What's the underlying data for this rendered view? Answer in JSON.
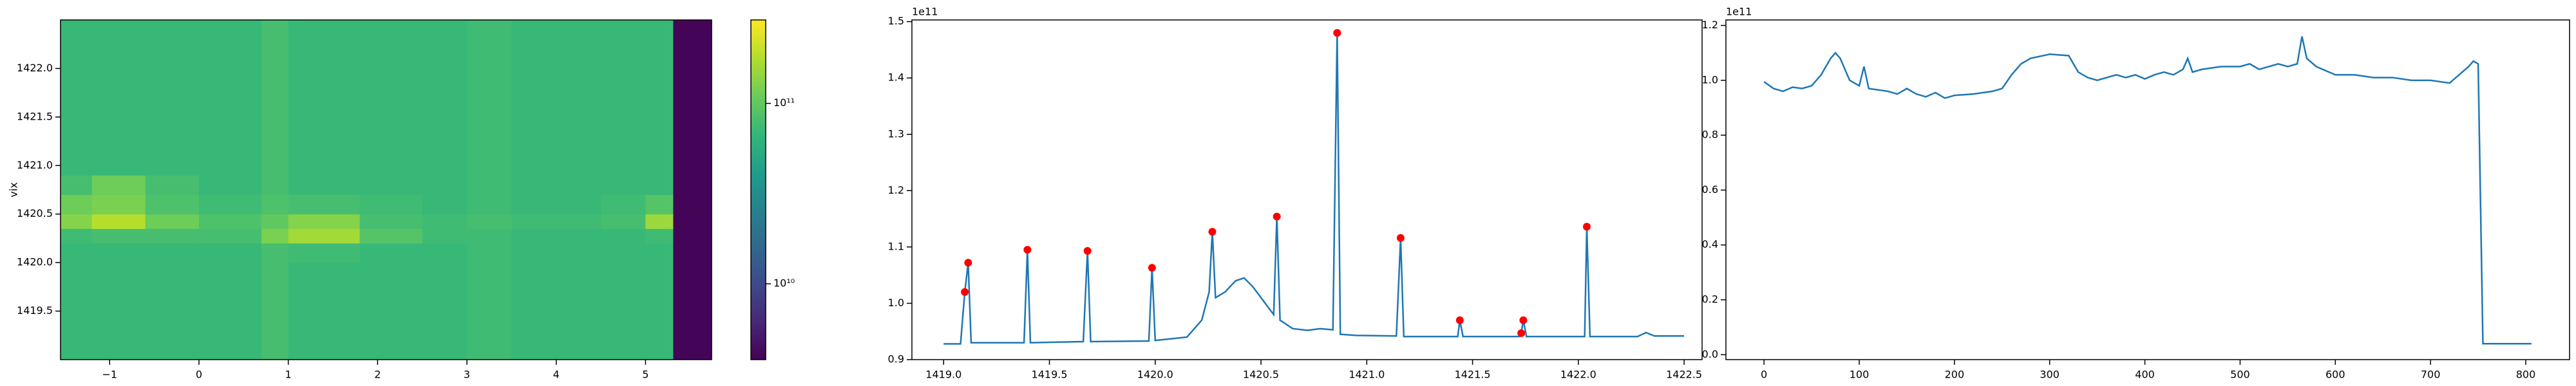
{
  "chart_data": [
    {
      "type": "heatmap",
      "y_label": "vix",
      "colorscale": "viridis",
      "color_log": true,
      "clim": [
        3800000000.0,
        290000000000.0
      ],
      "xlim": [
        -1.55,
        5.74
      ],
      "ylim": [
        1419.0,
        1422.5
      ],
      "xticks": [
        {
          "value": -1,
          "label": "−1"
        },
        0,
        1,
        2,
        3,
        4,
        5
      ],
      "yticks": [
        1419.5,
        {
          "value": 1420.0,
          "label": "1420.0"
        },
        1420.5,
        {
          "value": 1421.0,
          "label": "1421.0"
        },
        1421.5,
        {
          "value": 1422.0,
          "label": "1422.0"
        }
      ],
      "cticks": [
        {
          "value": 10000000000.0,
          "label": "10¹⁰"
        },
        {
          "value": 100000000000.0,
          "label": "10¹¹"
        }
      ],
      "x_edges": [
        -1.55,
        -1.2,
        -0.6,
        0,
        0.7,
        1.0,
        1.8,
        2.5,
        3.0,
        3.5,
        4.5,
        5.0,
        5.31,
        5.74
      ],
      "y_edges": [
        1419.0,
        1419.5,
        1420.0,
        1420.2,
        1420.35,
        1420.5,
        1420.7,
        1420.9,
        1421.5,
        1422.0,
        1422.5
      ],
      "z": [
        [
          70000000000.0,
          70000000000.0,
          70000000000.0,
          70000000000.0,
          80000000000.0,
          70000000000.0,
          70000000000.0,
          70000000000.0,
          75000000000.0,
          70000000000.0,
          70000000000.0,
          70000000000.0,
          4000000000.0
        ],
        [
          70000000000.0,
          70000000000.0,
          70000000000.0,
          70000000000.0,
          80000000000.0,
          70000000000.0,
          70000000000.0,
          70000000000.0,
          75000000000.0,
          70000000000.0,
          70000000000.0,
          70000000000.0,
          4000000000.0
        ],
        [
          70000000000.0,
          70000000000.0,
          70000000000.0,
          70000000000.0,
          80000000000.0,
          75000000000.0,
          70000000000.0,
          70000000000.0,
          75000000000.0,
          70000000000.0,
          70000000000.0,
          70000000000.0,
          4000000000.0
        ],
        [
          75000000000.0,
          80000000000.0,
          80000000000.0,
          80000000000.0,
          120000000000.0,
          160000000000.0,
          90000000000.0,
          75000000000.0,
          75000000000.0,
          70000000000.0,
          70000000000.0,
          75000000000.0,
          4000000000.0
        ],
        [
          130000000000.0,
          180000000000.0,
          110000000000.0,
          85000000000.0,
          100000000000.0,
          130000000000.0,
          80000000000.0,
          75000000000.0,
          80000000000.0,
          75000000000.0,
          80000000000.0,
          150000000000.0,
          4000000000.0
        ],
        [
          110000000000.0,
          120000000000.0,
          85000000000.0,
          75000000000.0,
          85000000000.0,
          80000000000.0,
          75000000000.0,
          70000000000.0,
          75000000000.0,
          70000000000.0,
          75000000000.0,
          90000000000.0,
          4000000000.0
        ],
        [
          80000000000.0,
          110000000000.0,
          80000000000.0,
          70000000000.0,
          80000000000.0,
          70000000000.0,
          70000000000.0,
          70000000000.0,
          75000000000.0,
          70000000000.0,
          70000000000.0,
          70000000000.0,
          4000000000.0
        ],
        [
          70000000000.0,
          70000000000.0,
          70000000000.0,
          70000000000.0,
          80000000000.0,
          70000000000.0,
          70000000000.0,
          70000000000.0,
          75000000000.0,
          70000000000.0,
          70000000000.0,
          70000000000.0,
          4000000000.0
        ],
        [
          70000000000.0,
          70000000000.0,
          70000000000.0,
          70000000000.0,
          80000000000.0,
          70000000000.0,
          70000000000.0,
          70000000000.0,
          75000000000.0,
          70000000000.0,
          70000000000.0,
          70000000000.0,
          4000000000.0
        ],
        [
          70000000000.0,
          70000000000.0,
          70000000000.0,
          70000000000.0,
          80000000000.0,
          70000000000.0,
          70000000000.0,
          70000000000.0,
          75000000000.0,
          70000000000.0,
          70000000000.0,
          70000000000.0,
          4000000000.0
        ]
      ]
    },
    {
      "type": "line",
      "offset_label": "1e11",
      "color": "#1f77b4",
      "xlim": [
        1418.85,
        1422.585
      ],
      "ylim": [
        0.9,
        1.503
      ],
      "xticks": [
        {
          "value": 1419.0,
          "label": "1419.0"
        },
        1419.5,
        {
          "value": 1420.0,
          "label": "1420.0"
        },
        1420.5,
        {
          "value": 1421.0,
          "label": "1421.0"
        },
        1421.5,
        {
          "value": 1422.0,
          "label": "1422.0"
        },
        1422.5
      ],
      "yticks": [
        0.9,
        {
          "value": 1.0,
          "label": "1.0"
        },
        1.1,
        1.2,
        1.3,
        1.4,
        1.5
      ],
      "x": [
        1419.0,
        1419.08,
        1419.1,
        1419.116,
        1419.13,
        1419.38,
        1419.396,
        1419.41,
        1419.66,
        1419.68,
        1419.695,
        1419.97,
        1419.985,
        1420.0,
        1420.15,
        1420.22,
        1420.255,
        1420.27,
        1420.285,
        1420.33,
        1420.38,
        1420.42,
        1420.46,
        1420.5,
        1420.54,
        1420.56,
        1420.575,
        1420.59,
        1420.65,
        1420.72,
        1420.78,
        1420.84,
        1420.86,
        1420.875,
        1420.95,
        1421.14,
        1421.16,
        1421.175,
        1421.43,
        1421.44,
        1421.455,
        1421.72,
        1421.73,
        1421.74,
        1421.755,
        1422.03,
        1422.04,
        1422.055,
        1422.28,
        1422.32,
        1422.36,
        1422.5
      ],
      "values": [
        0.928,
        0.928,
        1.02,
        1.072,
        0.93,
        0.93,
        1.095,
        0.93,
        0.932,
        1.093,
        0.932,
        0.933,
        1.063,
        0.934,
        0.94,
        0.97,
        1.02,
        1.127,
        1.01,
        1.02,
        1.04,
        1.045,
        1.03,
        1.01,
        0.99,
        0.98,
        1.154,
        0.97,
        0.955,
        0.952,
        0.955,
        0.953,
        1.48,
        0.945,
        0.943,
        0.942,
        1.116,
        0.941,
        0.941,
        0.97,
        0.941,
        0.941,
        0.947,
        0.97,
        0.941,
        0.941,
        1.136,
        0.941,
        0.941,
        0.948,
        0.942,
        0.942
      ],
      "markers": {
        "color": "#ff0000",
        "x": [
          1419.1,
          1419.116,
          1419.396,
          1419.68,
          1419.985,
          1420.27,
          1420.575,
          1420.86,
          1421.16,
          1421.44,
          1421.73,
          1421.74,
          1422.04
        ],
        "values": [
          1.02,
          1.072,
          1.095,
          1.093,
          1.063,
          1.127,
          1.154,
          1.48,
          1.116,
          0.97,
          0.947,
          0.97,
          1.136
        ]
      }
    },
    {
      "type": "line",
      "offset_label": "1e11",
      "color": "#1f77b4",
      "xlim": [
        -40,
        846
      ],
      "ylim": [
        -0.018,
        1.22
      ],
      "xticks": [
        0,
        100,
        200,
        300,
        400,
        500,
        600,
        700,
        800
      ],
      "yticks": [
        {
          "value": 0.0,
          "label": "0.0"
        },
        0.2,
        0.4,
        0.6,
        0.8,
        {
          "value": 1.0,
          "label": "1.0"
        },
        1.2
      ],
      "x": [
        0,
        10,
        20,
        30,
        40,
        50,
        60,
        70,
        75,
        80,
        90,
        100,
        105,
        110,
        120,
        130,
        140,
        150,
        160,
        170,
        180,
        190,
        200,
        220,
        240,
        250,
        260,
        270,
        280,
        300,
        320,
        330,
        340,
        350,
        370,
        380,
        390,
        400,
        410,
        420,
        430,
        440,
        445,
        450,
        460,
        480,
        500,
        510,
        520,
        540,
        550,
        560,
        565,
        570,
        580,
        600,
        620,
        640,
        660,
        680,
        700,
        720,
        740,
        745,
        750,
        755,
        806
      ],
      "values": [
        0.995,
        0.97,
        0.96,
        0.975,
        0.97,
        0.98,
        1.02,
        1.08,
        1.1,
        1.08,
        1.0,
        0.98,
        1.05,
        0.97,
        0.965,
        0.96,
        0.95,
        0.97,
        0.95,
        0.94,
        0.955,
        0.935,
        0.945,
        0.95,
        0.96,
        0.97,
        1.02,
        1.06,
        1.08,
        1.095,
        1.09,
        1.03,
        1.01,
        1.0,
        1.02,
        1.01,
        1.02,
        1.005,
        1.02,
        1.03,
        1.02,
        1.04,
        1.08,
        1.03,
        1.04,
        1.05,
        1.05,
        1.06,
        1.04,
        1.06,
        1.05,
        1.06,
        1.16,
        1.08,
        1.05,
        1.02,
        1.02,
        1.01,
        1.01,
        1.0,
        1.0,
        0.99,
        1.05,
        1.07,
        1.06,
        0.04,
        0.04
      ]
    }
  ]
}
